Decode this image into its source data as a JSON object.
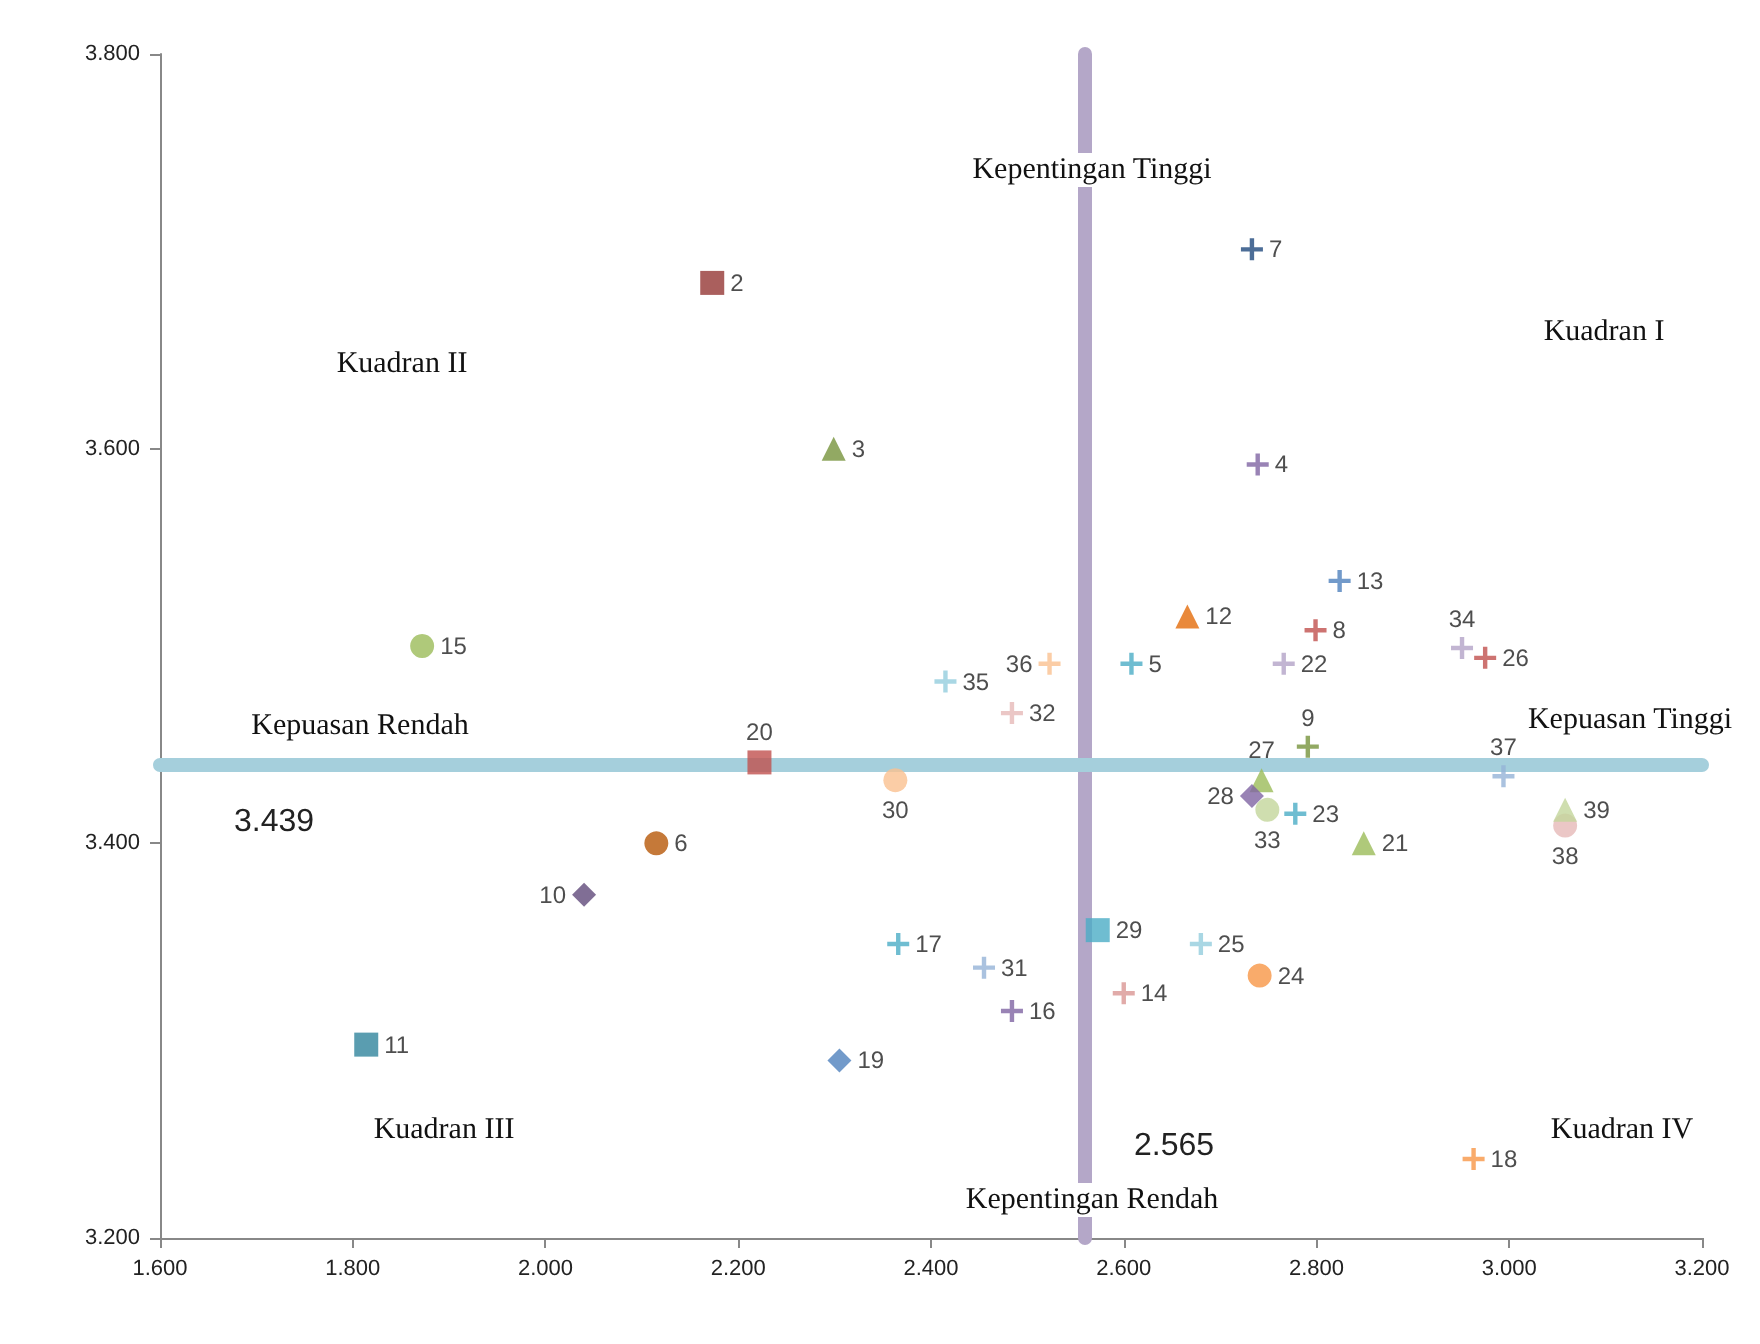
{
  "chart_data": {
    "type": "scatter",
    "xlim": [
      1.6,
      3.2
    ],
    "xticks": [
      {
        "value": 1.6,
        "label": "1.600"
      },
      {
        "value": 1.8,
        "label": "1.800"
      },
      {
        "value": 2.0,
        "label": "2.000"
      },
      {
        "value": 2.2,
        "label": "2.200"
      },
      {
        "value": 2.4,
        "label": "2.400"
      },
      {
        "value": 2.6,
        "label": "2.600"
      },
      {
        "value": 2.8,
        "label": "2.800"
      },
      {
        "value": 3.0,
        "label": "3.000"
      },
      {
        "value": 3.2,
        "label": "3.200"
      }
    ],
    "ylim": [
      3.2,
      3.8
    ],
    "yticks": [
      {
        "value": 3.2,
        "label": "3.200"
      },
      {
        "value": 3.4,
        "label": "3.400"
      },
      {
        "value": 3.6,
        "label": "3.600"
      },
      {
        "value": 3.8,
        "label": "3.800"
      }
    ],
    "grid": false,
    "legend": false,
    "annotations": [
      "Kepentingan Tinggi",
      "Kepentingan Rendah",
      "Kepuasan Rendah",
      "Kepuasan Tinggi",
      "Kuadran I",
      "Kuadran II",
      "Kuadran III",
      "Kuadran IV"
    ],
    "ref_lines": [
      {
        "axis": "x",
        "value": 2.565,
        "label": "2.565",
        "color": "#b4a7c8"
      },
      {
        "axis": "y",
        "value": 3.439,
        "label": "3.439",
        "color": "#a5cfdc"
      }
    ],
    "series": [
      {
        "name": "2",
        "x": [
          2.173
        ],
        "values": [
          3.684
        ],
        "color": "#953735",
        "marker": "square"
      },
      {
        "name": "3",
        "x": [
          2.299
        ],
        "values": [
          3.6
        ],
        "color": "#77933c",
        "marker": "triangle"
      },
      {
        "name": "4",
        "x": [
          2.739
        ],
        "values": [
          3.592
        ],
        "color": "#8064a2",
        "marker": "cross"
      },
      {
        "name": "5",
        "x": [
          2.608
        ],
        "values": [
          3.491
        ],
        "color": "#4bacc6",
        "marker": "cross"
      },
      {
        "name": "6",
        "x": [
          2.115
        ],
        "values": [
          3.4
        ],
        "color": "#b65708",
        "marker": "circle"
      },
      {
        "name": "7",
        "x": [
          2.733
        ],
        "values": [
          3.701
        ],
        "color": "#1f497d",
        "marker": "cross"
      },
      {
        "name": "8",
        "x": [
          2.799
        ],
        "values": [
          3.508
        ],
        "color": "#c0504d",
        "marker": "cross"
      },
      {
        "name": "9",
        "x": [
          2.791
        ],
        "values": [
          3.449
        ],
        "color": "#77933c",
        "marker": "cross"
      },
      {
        "name": "10",
        "x": [
          2.04
        ],
        "values": [
          3.374
        ],
        "color": "#604a7b",
        "marker": "diamond"
      },
      {
        "name": "11",
        "x": [
          1.814
        ],
        "values": [
          3.298
        ],
        "color": "#31859c",
        "marker": "square"
      },
      {
        "name": "12",
        "x": [
          2.666
        ],
        "values": [
          3.515
        ],
        "color": "#e46c0a",
        "marker": "triangle"
      },
      {
        "name": "13",
        "x": [
          2.824
        ],
        "values": [
          3.533
        ],
        "color": "#4f81bd",
        "marker": "cross"
      },
      {
        "name": "14",
        "x": [
          2.6
        ],
        "values": [
          3.324
        ],
        "color": "#d99694",
        "marker": "cross"
      },
      {
        "name": "15",
        "x": [
          1.872
        ],
        "values": [
          3.5
        ],
        "color": "#9bbb59",
        "marker": "circle"
      },
      {
        "name": "16",
        "x": [
          2.484
        ],
        "values": [
          3.315
        ],
        "color": "#8064a2",
        "marker": "cross"
      },
      {
        "name": "17",
        "x": [
          2.366
        ],
        "values": [
          3.349
        ],
        "color": "#4bacc6",
        "marker": "cross"
      },
      {
        "name": "18",
        "x": [
          2.963
        ],
        "values": [
          3.24
        ],
        "color": "#f79646",
        "marker": "cross"
      },
      {
        "name": "19",
        "x": [
          2.305
        ],
        "values": [
          3.29
        ],
        "color": "#4f81bd",
        "marker": "diamond"
      },
      {
        "name": "20",
        "x": [
          2.222
        ],
        "values": [
          3.441
        ],
        "color": "#c0504d",
        "marker": "square"
      },
      {
        "name": "21",
        "x": [
          2.849
        ],
        "values": [
          3.4
        ],
        "color": "#9bbb59",
        "marker": "triangle"
      },
      {
        "name": "22",
        "x": [
          2.766
        ],
        "values": [
          3.491
        ],
        "color": "#b3a2c7",
        "marker": "cross"
      },
      {
        "name": "23",
        "x": [
          2.778
        ],
        "values": [
          3.415
        ],
        "color": "#4bacc6",
        "marker": "cross"
      },
      {
        "name": "24",
        "x": [
          2.741
        ],
        "values": [
          3.333
        ],
        "color": "#f79646",
        "marker": "circle"
      },
      {
        "name": "25",
        "x": [
          2.68
        ],
        "values": [
          3.349
        ],
        "color": "#93cddd",
        "marker": "cross"
      },
      {
        "name": "26",
        "x": [
          2.975
        ],
        "values": [
          3.494
        ],
        "color": "#c0504d",
        "marker": "cross"
      },
      {
        "name": "27",
        "x": [
          2.743
        ],
        "values": [
          3.432
        ],
        "color": "#9bbb59",
        "marker": "triangle"
      },
      {
        "name": "28",
        "x": [
          2.733
        ],
        "values": [
          3.424
        ],
        "color": "#8064a2",
        "marker": "diamond"
      },
      {
        "name": "29",
        "x": [
          2.573
        ],
        "values": [
          3.356
        ],
        "color": "#4bacc6",
        "marker": "square"
      },
      {
        "name": "30",
        "x": [
          2.363
        ],
        "values": [
          3.432
        ],
        "color": "#fac090",
        "marker": "circle"
      },
      {
        "name": "31",
        "x": [
          2.455
        ],
        "values": [
          3.337
        ],
        "color": "#95b3d7",
        "marker": "cross"
      },
      {
        "name": "32",
        "x": [
          2.484
        ],
        "values": [
          3.466
        ],
        "color": "#e6b9b8",
        "marker": "cross"
      },
      {
        "name": "33",
        "x": [
          2.749
        ],
        "values": [
          3.417
        ],
        "color": "#c3d69b",
        "marker": "circle"
      },
      {
        "name": "34",
        "x": [
          2.951
        ],
        "values": [
          3.499
        ],
        "color": "#b3a2c7",
        "marker": "cross"
      },
      {
        "name": "35",
        "x": [
          2.415
        ],
        "values": [
          3.482
        ],
        "color": "#93cddd",
        "marker": "cross"
      },
      {
        "name": "36",
        "x": [
          2.523
        ],
        "values": [
          3.491
        ],
        "color": "#fac090",
        "marker": "cross"
      },
      {
        "name": "37",
        "x": [
          2.994
        ],
        "values": [
          3.434
        ],
        "color": "#95b3d7",
        "marker": "cross"
      },
      {
        "name": "38",
        "x": [
          3.058
        ],
        "values": [
          3.409
        ],
        "color": "#e6b9b8",
        "marker": "circle"
      },
      {
        "name": "39",
        "x": [
          3.058
        ],
        "values": [
          3.417
        ],
        "color": "#c3d69b",
        "marker": "triangle"
      }
    ]
  }
}
